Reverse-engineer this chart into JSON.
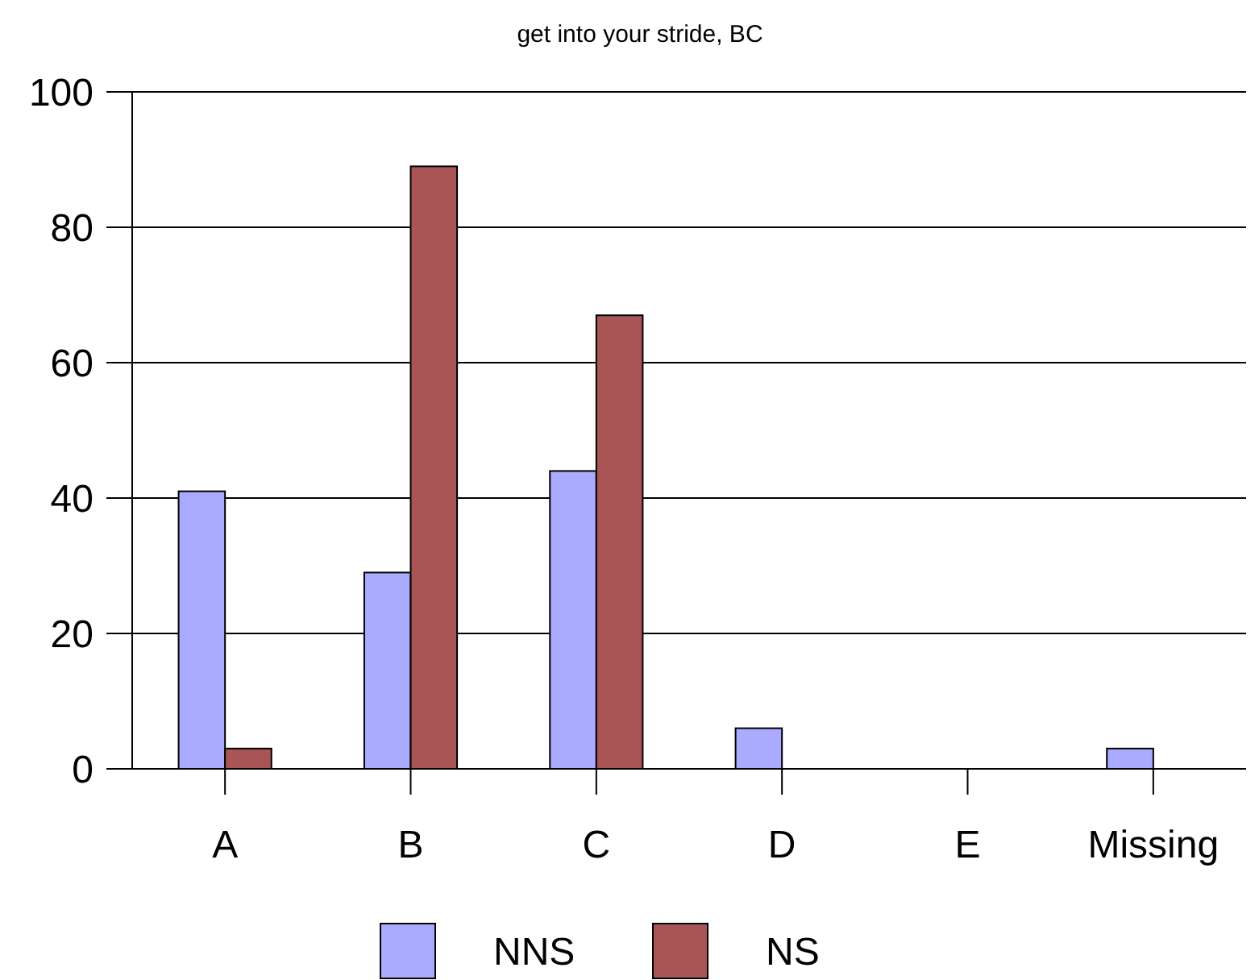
{
  "chart_data": {
    "type": "bar",
    "title": "get into your stride, BC",
    "categories": [
      "A",
      "B",
      "C",
      "D",
      "E",
      "Missing"
    ],
    "series": [
      {
        "name": "NNS",
        "color": "#aaaaff",
        "values": [
          41,
          29,
          44,
          6,
          0,
          3
        ]
      },
      {
        "name": "NS",
        "color": "#aa5555",
        "values": [
          3,
          89,
          67,
          0,
          0,
          0
        ]
      }
    ],
    "ylim": [
      0,
      100
    ],
    "yticks": [
      0,
      20,
      40,
      60,
      80,
      100
    ],
    "grid": "y",
    "legend": "bottom"
  }
}
